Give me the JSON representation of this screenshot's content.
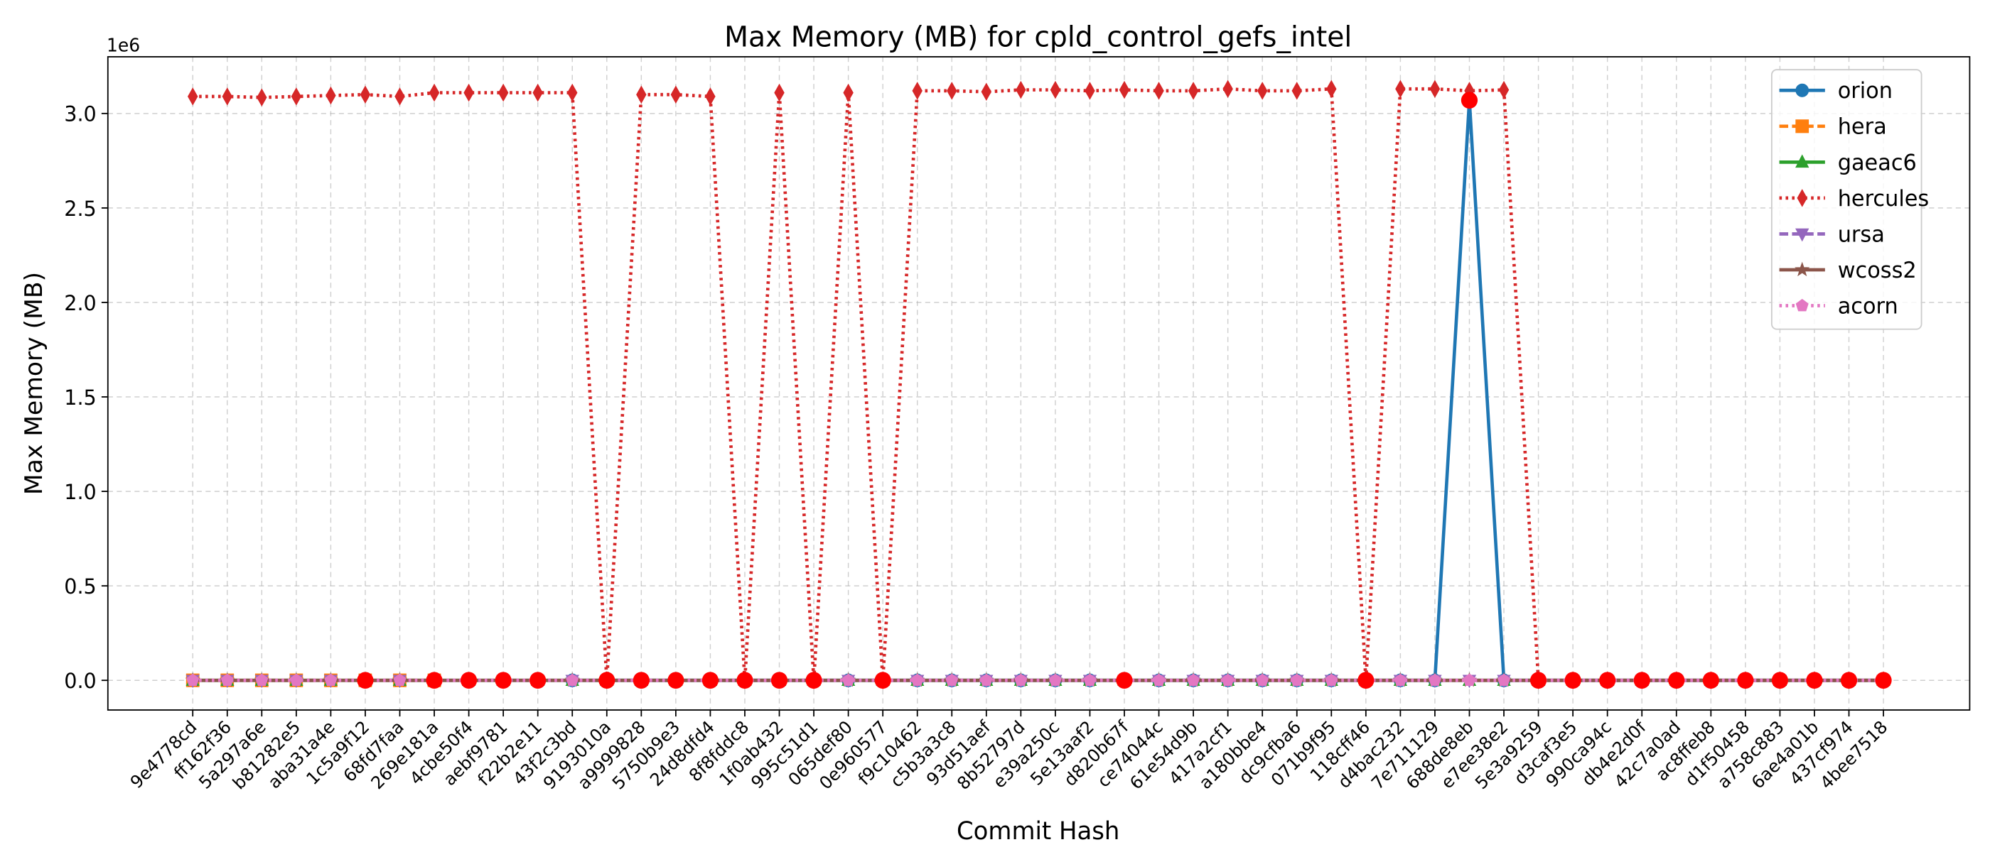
{
  "chart_data": {
    "type": "line",
    "title": "Max Memory (MB) for cpld_control_gefs_intel",
    "xlabel": "Commit Hash",
    "ylabel": "Max Memory (MB)",
    "y_offset_label": "1e6",
    "categories": [
      "9e4778cd",
      "ff162f36",
      "5a297a6e",
      "b81282e5",
      "aba31a4e",
      "1c5a9f12",
      "68fd7faa",
      "269e181a",
      "4cbe50f4",
      "aebf9781",
      "f22b2e11",
      "43f2c3bd",
      "9193010a",
      "a9999828",
      "5750b9e3",
      "24d8dfd4",
      "8f8fddc8",
      "1f0ab432",
      "995c51d1",
      "065def80",
      "0e960577",
      "f9c10462",
      "c5b3a3c8",
      "93d51aef",
      "8b52797d",
      "e39a250c",
      "5e13aaf2",
      "d820b67f",
      "ce74044c",
      "61e54d9b",
      "417a2cf1",
      "a180bbe4",
      "dc9cfba6",
      "071b9f95",
      "118cff46",
      "d4bac232",
      "7e711129",
      "688de8eb",
      "e7ee38e2",
      "5e3a9259",
      "d3caf3e5",
      "990ca94c",
      "db4e2d0f",
      "42c7a0ad",
      "ac8ffeb8",
      "d1f50458",
      "a758c883",
      "6ae4a01b",
      "437cf974",
      "4bee7518"
    ],
    "xlim": [
      -2.46,
      51.5
    ],
    "ylim": [
      -157000,
      3300000
    ],
    "yticks": [
      {
        "value": 0,
        "label": "0.0"
      },
      {
        "value": 500000,
        "label": "0.5"
      },
      {
        "value": 1000000,
        "label": "1.0"
      },
      {
        "value": 1500000,
        "label": "1.5"
      },
      {
        "value": 2000000,
        "label": "2.0"
      },
      {
        "value": 2500000,
        "label": "2.5"
      },
      {
        "value": 3000000,
        "label": "3.0"
      }
    ],
    "grid": true,
    "legend": "upper right",
    "series": [
      {
        "name": "orion",
        "color": "#1f77b4",
        "linestyle": "solid",
        "marker": "circle",
        "values": [
          null,
          null,
          null,
          null,
          null,
          null,
          null,
          null,
          null,
          null,
          null,
          0,
          0,
          0,
          0,
          0,
          0,
          0,
          0,
          0,
          0,
          0,
          0,
          0,
          0,
          0,
          0,
          0,
          0,
          0,
          0,
          0,
          0,
          0,
          0,
          0,
          0,
          3070000,
          0,
          0,
          0,
          0,
          0,
          0,
          0,
          0,
          0,
          0,
          0,
          0
        ]
      },
      {
        "name": "hera",
        "color": "#ff7f0e",
        "linestyle": "dashed",
        "marker": "square",
        "values": [
          0,
          0,
          0,
          0,
          0,
          0,
          0,
          0,
          null,
          null,
          null,
          null,
          null,
          null,
          null,
          null,
          null,
          null,
          null,
          null,
          null,
          null,
          null,
          null,
          null,
          null,
          null,
          null,
          null,
          null,
          null,
          null,
          null,
          null,
          null,
          null,
          null,
          null,
          null,
          null,
          null,
          null,
          null,
          null,
          null,
          null,
          null,
          null,
          null,
          null
        ]
      },
      {
        "name": "gaeac6",
        "color": "#2ca02c",
        "linestyle": "solid",
        "marker": "triangle-up",
        "values": [
          0,
          0,
          0,
          0,
          0,
          0,
          0,
          0,
          0,
          0,
          0,
          0,
          0,
          0,
          0,
          0,
          0,
          0,
          0,
          0,
          0,
          0,
          0,
          0,
          0,
          0,
          0,
          0,
          0,
          0,
          0,
          0,
          0,
          0,
          0,
          0,
          0,
          0,
          0,
          0,
          0,
          0,
          0,
          0,
          0,
          0,
          0,
          0,
          0,
          0
        ]
      },
      {
        "name": "hercules",
        "color": "#d62728",
        "linestyle": "dotted",
        "marker": "diamond",
        "values": [
          3090000,
          3090000,
          3085000,
          3090000,
          3095000,
          3100000,
          3090000,
          3110000,
          3110000,
          3110000,
          3110000,
          3110000,
          0,
          3100000,
          3100000,
          3090000,
          0,
          3110000,
          0,
          3110000,
          0,
          3120000,
          3120000,
          3115000,
          3125000,
          3125000,
          3120000,
          3125000,
          3120000,
          3120000,
          3130000,
          3120000,
          3120000,
          3130000,
          0,
          3130000,
          3130000,
          3120000,
          3125000,
          0,
          0,
          0,
          0,
          0,
          0,
          0,
          0,
          0,
          0,
          0
        ]
      },
      {
        "name": "ursa",
        "color": "#9467bd",
        "linestyle": "dashed",
        "marker": "triangle-down",
        "values": [
          0,
          0,
          0,
          0,
          0,
          0,
          0,
          0,
          0,
          0,
          0,
          0,
          0,
          0,
          0,
          0,
          0,
          0,
          0,
          0,
          0,
          0,
          0,
          0,
          0,
          0,
          0,
          0,
          0,
          0,
          0,
          0,
          0,
          0,
          0,
          0,
          0,
          0,
          0,
          0,
          0,
          0,
          0,
          0,
          0,
          0,
          0,
          0,
          0,
          0
        ]
      },
      {
        "name": "wcoss2",
        "color": "#8c564b",
        "linestyle": "solid",
        "marker": "star",
        "values": [
          0,
          0,
          0,
          0,
          0,
          0,
          0,
          0,
          0,
          0,
          0,
          0,
          0,
          0,
          0,
          0,
          0,
          0,
          0,
          0,
          0,
          0,
          0,
          0,
          0,
          0,
          0,
          0,
          0,
          0,
          0,
          0,
          0,
          0,
          0,
          0,
          0,
          0,
          0,
          0,
          0,
          0,
          0,
          0,
          0,
          0,
          0,
          0,
          0,
          0
        ]
      },
      {
        "name": "acorn",
        "color": "#e377c2",
        "linestyle": "dotted",
        "marker": "pentagon",
        "values": [
          0,
          0,
          0,
          0,
          0,
          0,
          0,
          0,
          0,
          0,
          0,
          0,
          0,
          0,
          0,
          0,
          0,
          0,
          0,
          0,
          0,
          0,
          0,
          0,
          0,
          0,
          0,
          0,
          0,
          0,
          0,
          0,
          0,
          0,
          0,
          0,
          0,
          0,
          0,
          0,
          0,
          0,
          0,
          0,
          0,
          0,
          0,
          0,
          0,
          0
        ]
      }
    ],
    "highlight_color": "#ff0000",
    "highlights": [
      {
        "series": 5,
        "index": 5
      },
      {
        "series": 5,
        "index": 7
      },
      {
        "series": 5,
        "index": 8
      },
      {
        "series": 5,
        "index": 9
      },
      {
        "series": 5,
        "index": 10
      },
      {
        "series": 3,
        "index": 12
      },
      {
        "series": 5,
        "index": 13
      },
      {
        "series": 5,
        "index": 14
      },
      {
        "series": 5,
        "index": 15
      },
      {
        "series": 3,
        "index": 16
      },
      {
        "series": 5,
        "index": 17
      },
      {
        "series": 3,
        "index": 18
      },
      {
        "series": 3,
        "index": 20
      },
      {
        "series": 5,
        "index": 27
      },
      {
        "series": 3,
        "index": 34
      },
      {
        "series": 0,
        "index": 37
      },
      {
        "series": 3,
        "index": 39
      },
      {
        "series": 3,
        "index": 40
      },
      {
        "series": 3,
        "index": 41
      },
      {
        "series": 3,
        "index": 42
      },
      {
        "series": 3,
        "index": 43
      },
      {
        "series": 3,
        "index": 44
      },
      {
        "series": 3,
        "index": 45
      },
      {
        "series": 3,
        "index": 46
      },
      {
        "series": 3,
        "index": 47
      },
      {
        "series": 3,
        "index": 48
      },
      {
        "series": 3,
        "index": 49
      }
    ]
  }
}
